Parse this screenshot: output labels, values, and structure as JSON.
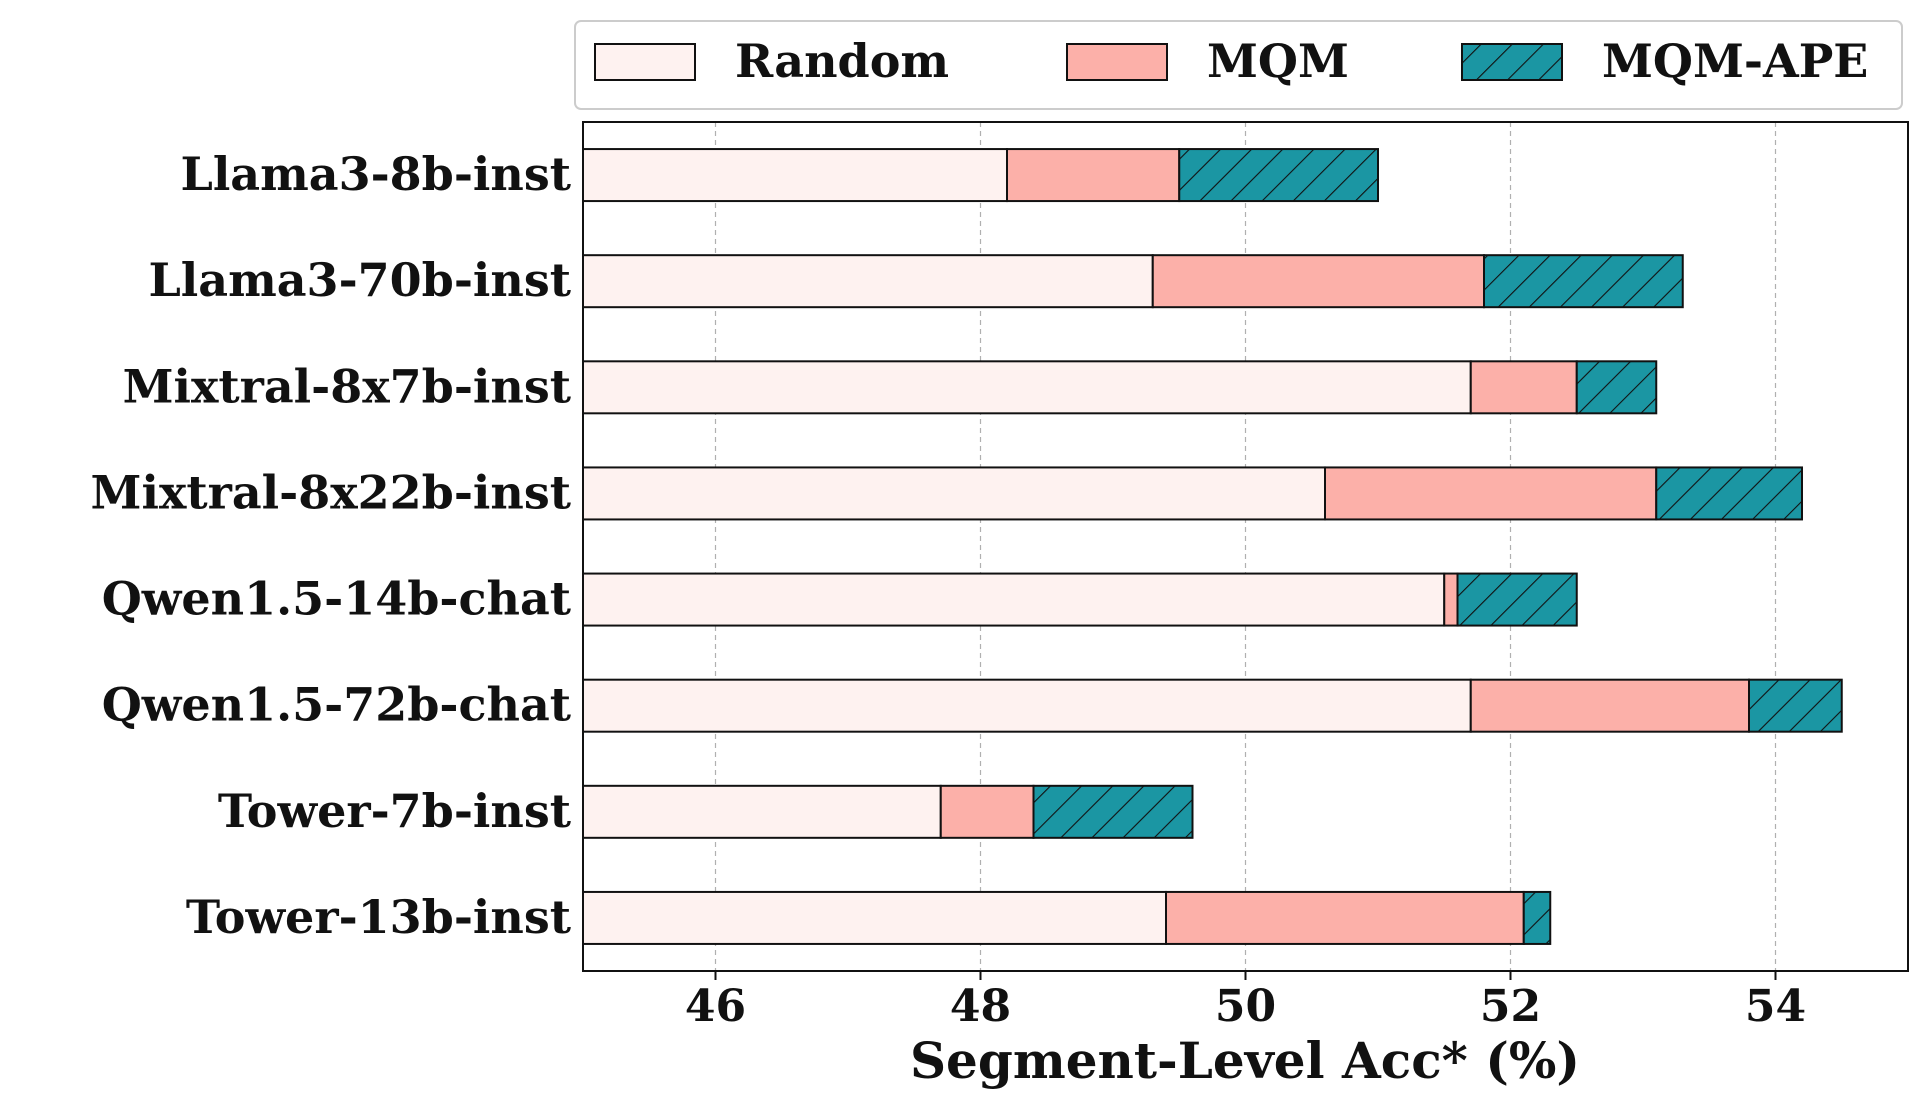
{
  "chart_data": {
    "type": "bar",
    "orientation": "horizontal",
    "stacked": true,
    "categories": [
      "Llama3-8b-inst",
      "Llama3-70b-inst",
      "Mixtral-8x7b-inst",
      "Mixtral-8x22b-inst",
      "Qwen1.5-14b-chat",
      "Qwen1.5-72b-chat",
      "Tower-7b-inst",
      "Tower-13b-inst"
    ],
    "series": [
      {
        "name": "Random",
        "cumulative_values": [
          48.2,
          49.3,
          51.7,
          50.6,
          51.5,
          51.7,
          47.7,
          49.4
        ],
        "color": "#fef2f0",
        "hatch": false
      },
      {
        "name": "MQM",
        "cumulative_values": [
          49.5,
          51.8,
          52.5,
          53.1,
          51.6,
          53.8,
          48.4,
          52.1
        ],
        "color": "#fcb0a9",
        "hatch": false
      },
      {
        "name": "MQM-APE",
        "cumulative_values": [
          51.0,
          53.3,
          53.1,
          54.2,
          52.5,
          54.5,
          49.6,
          52.3
        ],
        "color": "#1b96a3",
        "hatch": true
      }
    ],
    "xlabel": "Segment-Level Acc* (%)",
    "ylabel": "",
    "xlim": [
      45,
      55
    ],
    "xticks": [
      46,
      48,
      50,
      52,
      54
    ],
    "grid": "vertical-dashed",
    "legend": "top"
  }
}
